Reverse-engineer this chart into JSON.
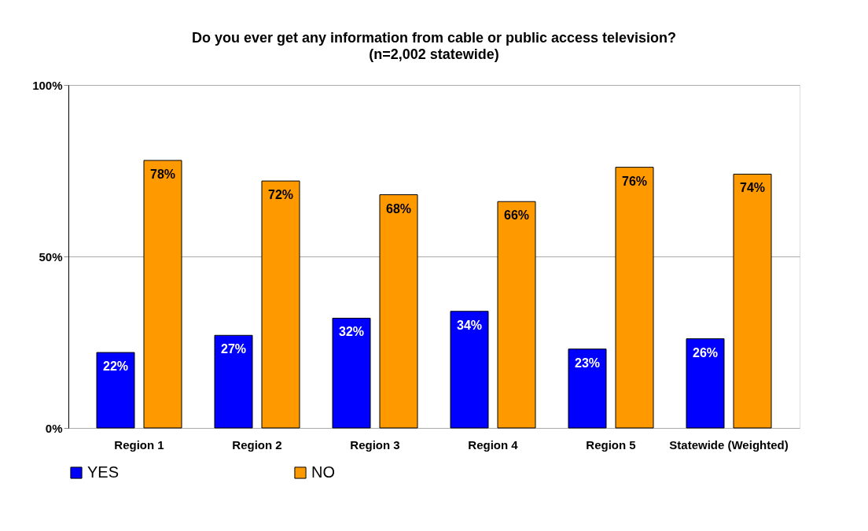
{
  "chart_data": {
    "type": "bar",
    "title": "Do you ever get any information from cable or public access television?",
    "subtitle": "(n=2,002 statewide)",
    "categories": [
      "Region 1",
      "Region 2",
      "Region 3",
      "Region 4",
      "Region 5",
      "Statewide (Weighted)"
    ],
    "series": [
      {
        "name": "YES",
        "color": "#0000ff",
        "values": [
          22,
          27,
          32,
          34,
          23,
          26
        ],
        "value_labels": [
          "22%",
          "27%",
          "32%",
          "34%",
          "23%",
          "26%"
        ]
      },
      {
        "name": "NO",
        "color": "#ff9900",
        "values": [
          78,
          72,
          68,
          66,
          76,
          74
        ],
        "value_labels": [
          "78%",
          "72%",
          "68%",
          "66%",
          "76%",
          "74%"
        ]
      }
    ],
    "ylim": [
      0,
      100
    ],
    "yticks": [
      {
        "value": 0,
        "label": "0%"
      },
      {
        "value": 50,
        "label": "50%"
      },
      {
        "value": 100,
        "label": "100%"
      }
    ],
    "grid": "y",
    "legend": "bottom"
  }
}
